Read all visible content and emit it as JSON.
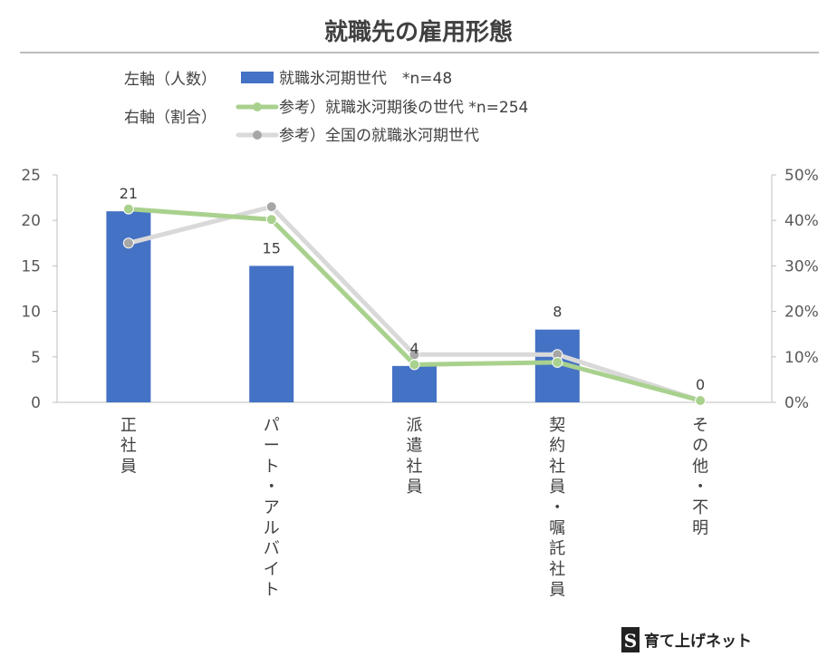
{
  "chart_data": {
    "type": "bar",
    "title": "就職先の雇用形態",
    "categories": [
      "正社員",
      "パート・アルバイト",
      "派遣社員",
      "契約社員・嘱託社員",
      "その他・不明"
    ],
    "axes": {
      "left": {
        "label": "左軸（人数）",
        "min": 0,
        "max": 25,
        "step": 5,
        "ticks": [
          "0",
          "5",
          "10",
          "15",
          "20",
          "25"
        ]
      },
      "right": {
        "label": "右軸（割合）",
        "min": 0,
        "max": 50,
        "step": 10,
        "ticks": [
          "0%",
          "10%",
          "20%",
          "30%",
          "40%",
          "50%"
        ]
      }
    },
    "series": [
      {
        "name": "就職氷河期世代　*n=48",
        "type": "bar",
        "axis": "left",
        "color": "#4472c4",
        "values": [
          21,
          15,
          4,
          8,
          0
        ],
        "labels": [
          "21",
          "15",
          "4",
          "8",
          "0"
        ]
      },
      {
        "name": "参考）就職氷河期後の世代 *n=254",
        "type": "line",
        "axis": "right",
        "color": "#a9d18e",
        "marker_color": "#a9d18e",
        "values": [
          42.5,
          40.2,
          8.3,
          8.8,
          0.4
        ]
      },
      {
        "name": "参考）全国の就職氷河期世代",
        "type": "line",
        "axis": "right",
        "color": "#d9d9d9",
        "marker_color": "#a6a6a6",
        "values": [
          35.0,
          43.0,
          10.5,
          10.5,
          0.4
        ]
      }
    ],
    "grid": false,
    "legend_position": "top"
  },
  "brand": {
    "logo_letter": "S",
    "name": "育て上げネット"
  }
}
